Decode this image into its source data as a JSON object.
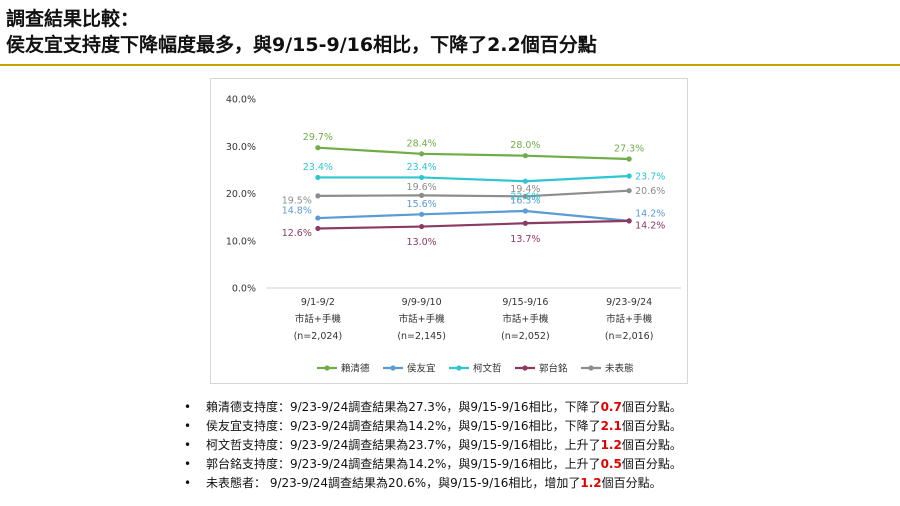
{
  "title": {
    "line1": "調查結果比較：",
    "line2": "侯友宜支持度下降幅度最多，與9/15-9/16相比，下降了2.2個百分點"
  },
  "chart_data": {
    "type": "line",
    "categories": [
      [
        "9/1-9/2",
        "市話+手機",
        "(n=2,024)"
      ],
      [
        "9/9-9/10",
        "市話+手機",
        "(n=2,145)"
      ],
      [
        "9/15-9/16",
        "市話+手機",
        "(n=2,052)"
      ],
      [
        "9/23-9/24",
        "市話+手機",
        "(n=2,016)"
      ]
    ],
    "y_ticks": [
      "40.0%",
      "30.0%",
      "20.0%",
      "10.0%",
      "0.0%"
    ],
    "ylim": [
      0,
      40
    ],
    "grid": false,
    "legend_position": "bottom",
    "series": [
      {
        "name": "賴清德",
        "color": "#70ad47",
        "values": [
          29.7,
          28.4,
          28.0,
          27.3
        ],
        "labels": [
          "29.7%",
          "28.4%",
          "28.0%",
          "27.3%"
        ]
      },
      {
        "name": "侯友宜",
        "color": "#5b9bd5",
        "values": [
          14.8,
          15.6,
          16.3,
          14.2
        ],
        "labels": [
          "14.8%",
          "15.6%",
          "16.3%",
          "14.2%"
        ]
      },
      {
        "name": "柯文哲",
        "color": "#2ec6d0",
        "values": [
          23.4,
          23.4,
          22.6,
          23.7
        ],
        "labels": [
          "23.4%",
          "23.4%",
          "22.6%",
          "23.7%"
        ]
      },
      {
        "name": "郭台銘",
        "color": "#8b3a62",
        "values": [
          12.6,
          13.0,
          13.7,
          14.2
        ],
        "labels": [
          "12.6%",
          "13.0%",
          "13.7%",
          "14.2%"
        ]
      },
      {
        "name": "未表態",
        "color": "#8c8c8c",
        "values": [
          19.5,
          19.6,
          19.4,
          20.6
        ],
        "labels": [
          "19.5%",
          "19.6%",
          "19.4%",
          "20.6%"
        ]
      }
    ]
  },
  "bullets": [
    {
      "pre": "賴清德支持度：9/23-9/24調查結果為27.3%，與9/15-9/16相比，下降了",
      "hl": "0.7",
      "post": "個百分點。"
    },
    {
      "pre": "侯友宜支持度：9/23-9/24調查結果為14.2%，與9/15-9/16相比，下降了",
      "hl": "2.1",
      "post": "個百分點。"
    },
    {
      "pre": "柯文哲支持度：9/23-9/24調查結果為23.7%，與9/15-9/16相比，上升了",
      "hl": "1.2",
      "post": "個百分點。"
    },
    {
      "pre": "郭台銘支持度：9/23-9/24調查結果為14.2%，與9/15-9/16相比，上升了",
      "hl": "0.5",
      "post": "個百分點。"
    },
    {
      "pre": "未表態者： 9/23-9/24調查結果為20.6%，與9/15-9/16相比，增加了",
      "hl": "1.2",
      "post": "個百分點。"
    }
  ],
  "bullet_symbol": "•"
}
